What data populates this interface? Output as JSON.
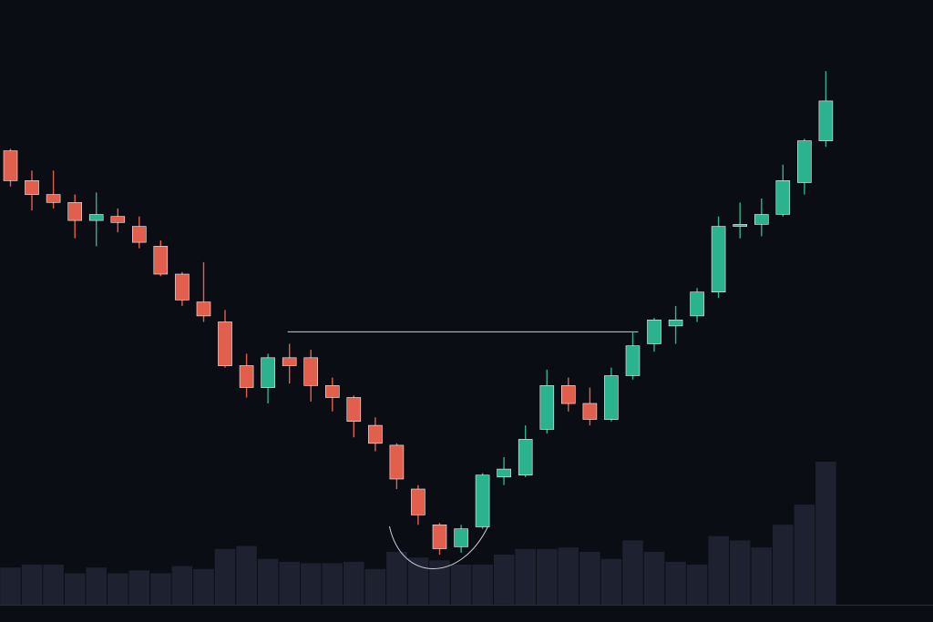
{
  "colors": {
    "background": "#0b0d15",
    "up": "#2bb38f",
    "down": "#e25f4e",
    "volume": "#1e2130",
    "annotation": "#c9ccd6",
    "baseline": "#2a2d3a"
  },
  "chart_data": {
    "type": "candlestick",
    "title": "",
    "xlabel": "",
    "ylabel": "",
    "grid": false,
    "legend": "none",
    "price_range": [
      0,
      100
    ],
    "volume_range": [
      0,
      100
    ],
    "candles": [
      {
        "i": 0,
        "open": 85.0,
        "close": 77.5,
        "high": 85.5,
        "low": 76.0,
        "volume": 26
      },
      {
        "i": 1,
        "open": 77.5,
        "close": 74.0,
        "high": 80.0,
        "low": 70.0,
        "volume": 28
      },
      {
        "i": 2,
        "open": 74.0,
        "close": 72.0,
        "high": 80.0,
        "low": 70.5,
        "volume": 28
      },
      {
        "i": 3,
        "open": 72.0,
        "close": 67.5,
        "high": 74.0,
        "low": 63.0,
        "volume": 22
      },
      {
        "i": 4,
        "open": 67.5,
        "close": 69.0,
        "high": 74.5,
        "low": 61.0,
        "volume": 26
      },
      {
        "i": 5,
        "open": 68.5,
        "close": 67.0,
        "high": 70.5,
        "low": 64.5,
        "volume": 22
      },
      {
        "i": 6,
        "open": 66.0,
        "close": 62.0,
        "high": 68.5,
        "low": 60.5,
        "volume": 24
      },
      {
        "i": 7,
        "open": 61.0,
        "close": 54.0,
        "high": 62.5,
        "low": 53.5,
        "volume": 22
      },
      {
        "i": 8,
        "open": 54.0,
        "close": 47.5,
        "high": 54.5,
        "low": 46.0,
        "volume": 27
      },
      {
        "i": 9,
        "open": 47.0,
        "close": 43.5,
        "high": 57.0,
        "low": 42.0,
        "volume": 25
      },
      {
        "i": 10,
        "open": 42.0,
        "close": 31.0,
        "high": 45.0,
        "low": 30.5,
        "volume": 39
      },
      {
        "i": 11,
        "open": 31.0,
        "close": 25.5,
        "high": 34.0,
        "low": 23.0,
        "volume": 41
      },
      {
        "i": 12,
        "open": 25.5,
        "close": 33.0,
        "high": 34.0,
        "low": 21.5,
        "volume": 32
      },
      {
        "i": 13,
        "open": 33.0,
        "close": 31.0,
        "high": 36.5,
        "low": 26.5,
        "volume": 30
      },
      {
        "i": 14,
        "open": 33.0,
        "close": 26.0,
        "high": 35.0,
        "low": 22.0,
        "volume": 29
      },
      {
        "i": 15,
        "open": 26.0,
        "close": 23.0,
        "high": 28.0,
        "low": 19.5,
        "volume": 29
      },
      {
        "i": 16,
        "open": 23.0,
        "close": 17.0,
        "high": 23.5,
        "low": 13.0,
        "volume": 30
      },
      {
        "i": 17,
        "open": 16.0,
        "close": 11.5,
        "high": 18.0,
        "low": 9.5,
        "volume": 25
      },
      {
        "i": 18,
        "open": 11.0,
        "close": 2.5,
        "high": 11.5,
        "low": 0.0,
        "volume": 37
      },
      {
        "i": 19,
        "open": 0.0,
        "close": -6.5,
        "high": 1.0,
        "low": -9.0,
        "volume": 33
      },
      {
        "i": 20,
        "open": -9.0,
        "close": -15.0,
        "high": -8.5,
        "low": -16.5,
        "volume": 31
      },
      {
        "i": 21,
        "open": -14.5,
        "close": -10.0,
        "high": -9.0,
        "low": -16.0,
        "volume": 28
      },
      {
        "i": 22,
        "open": -9.5,
        "close": 3.5,
        "high": 4.0,
        "low": -10.0,
        "volume": 28
      },
      {
        "i": 23,
        "open": 3.0,
        "close": 5.0,
        "high": 8.0,
        "low": 1.0,
        "volume": 35
      },
      {
        "i": 24,
        "open": 3.5,
        "close": 12.5,
        "high": 16.0,
        "low": 3.0,
        "volume": 39
      },
      {
        "i": 25,
        "open": 15.0,
        "close": 26.0,
        "high": 30.0,
        "low": 14.0,
        "volume": 39
      },
      {
        "i": 26,
        "open": 26.0,
        "close": 21.5,
        "high": 28.0,
        "low": 19.5,
        "volume": 40
      },
      {
        "i": 27,
        "open": 21.5,
        "close": 17.5,
        "high": 25.5,
        "low": 16.0,
        "volume": 37
      },
      {
        "i": 28,
        "open": 17.5,
        "close": 28.5,
        "high": 30.5,
        "low": 17.0,
        "volume": 32
      },
      {
        "i": 29,
        "open": 28.5,
        "close": 36.0,
        "high": 39.5,
        "low": 27.5,
        "volume": 45
      },
      {
        "i": 30,
        "open": 36.5,
        "close": 42.5,
        "high": 43.0,
        "low": 34.5,
        "volume": 37
      },
      {
        "i": 31,
        "open": 41.0,
        "close": 42.5,
        "high": 46.0,
        "low": 36.5,
        "volume": 30
      },
      {
        "i": 32,
        "open": 43.5,
        "close": 49.5,
        "high": 50.5,
        "low": 42.0,
        "volume": 28
      },
      {
        "i": 33,
        "open": 49.5,
        "close": 66.0,
        "high": 68.5,
        "low": 48.0,
        "volume": 48
      },
      {
        "i": 34,
        "open": 66.0,
        "close": 66.5,
        "high": 72.0,
        "low": 63.0,
        "volume": 45
      },
      {
        "i": 35,
        "open": 66.5,
        "close": 69.0,
        "high": 73.0,
        "low": 63.5,
        "volume": 40
      },
      {
        "i": 36,
        "open": 69.0,
        "close": 77.5,
        "high": 81.5,
        "low": 68.5,
        "volume": 56
      },
      {
        "i": 37,
        "open": 77.0,
        "close": 87.5,
        "high": 88.0,
        "low": 74.0,
        "volume": 70
      },
      {
        "i": 38,
        "open": 87.5,
        "close": 97.5,
        "high": 105.0,
        "low": 86.0,
        "volume": 100
      }
    ],
    "annotations": {
      "resistance_line": {
        "value": 39.5,
        "from_index": 13,
        "to_index": 29
      },
      "bottom_curve": {
        "from_index": 18,
        "to_index": 22
      }
    }
  }
}
